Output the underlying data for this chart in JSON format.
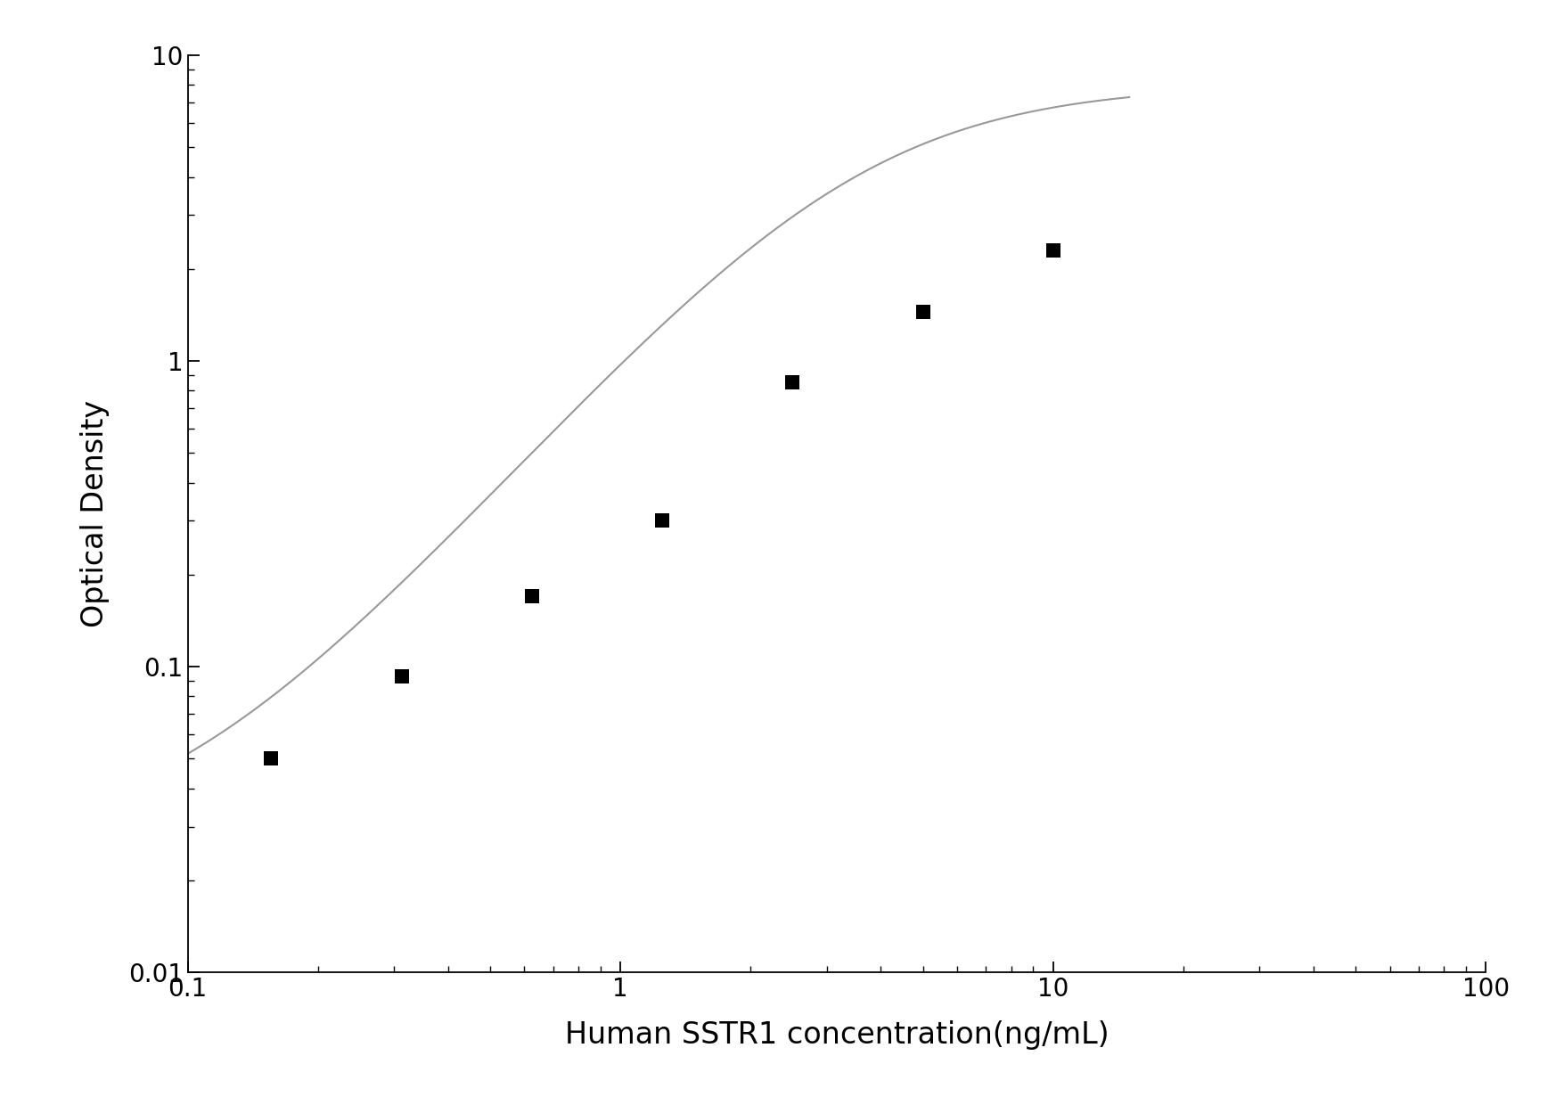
{
  "x_data": [
    0.156,
    0.313,
    0.625,
    1.25,
    2.5,
    5.0,
    10.0
  ],
  "y_data": [
    0.05,
    0.093,
    0.17,
    0.3,
    0.85,
    1.45,
    2.3
  ],
  "xlabel": "Human SSTR1 concentration(ng/mL)",
  "ylabel": "Optical Density",
  "xlim_log": [
    0.1,
    100
  ],
  "ylim_log": [
    0.01,
    10
  ],
  "marker_color": "#000000",
  "line_color": "#999999",
  "marker_size": 11,
  "line_width": 1.5,
  "tick_label_size": 20,
  "axis_label_size": 24,
  "background_color": "#ffffff",
  "xticks": [
    0.1,
    1,
    10,
    100
  ],
  "xtick_labels": [
    "0.1",
    "1",
    "10",
    "100"
  ],
  "yticks": [
    0.01,
    0.1,
    1,
    10
  ],
  "ytick_labels": [
    "0.01",
    "0.1",
    "1",
    "10"
  ],
  "curve_xlim": [
    0.1,
    20
  ],
  "four_pl_A": 0.025,
  "four_pl_B": 1.6,
  "four_pl_C": 3.5,
  "four_pl_D": 8.0
}
